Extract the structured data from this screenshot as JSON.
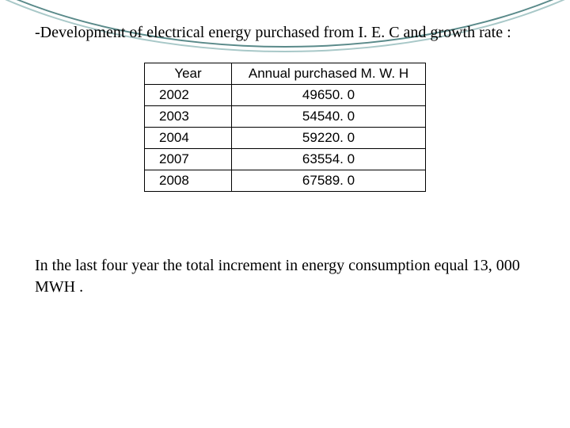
{
  "palette": {
    "arc_outer": "#5a8a8a",
    "arc_inner": "#a8c8c8",
    "background": "#ffffff",
    "text": "#000000",
    "border": "#000000"
  },
  "heading": "-Development of electrical  energy purchased from I. E. C and growth  rate :",
  "table": {
    "columns": [
      "Year",
      "Annual purchased M. W. H"
    ],
    "rows": [
      [
        "2002",
        "49650. 0"
      ],
      [
        "2003",
        "54540. 0"
      ],
      [
        "2004",
        "59220. 0"
      ],
      [
        "2007",
        "63554. 0"
      ],
      [
        "2008",
        "67589. 0"
      ]
    ]
  },
  "footer": "In the last  four year  the total increment in energy consumption  equal 13, 000 MWH ."
}
